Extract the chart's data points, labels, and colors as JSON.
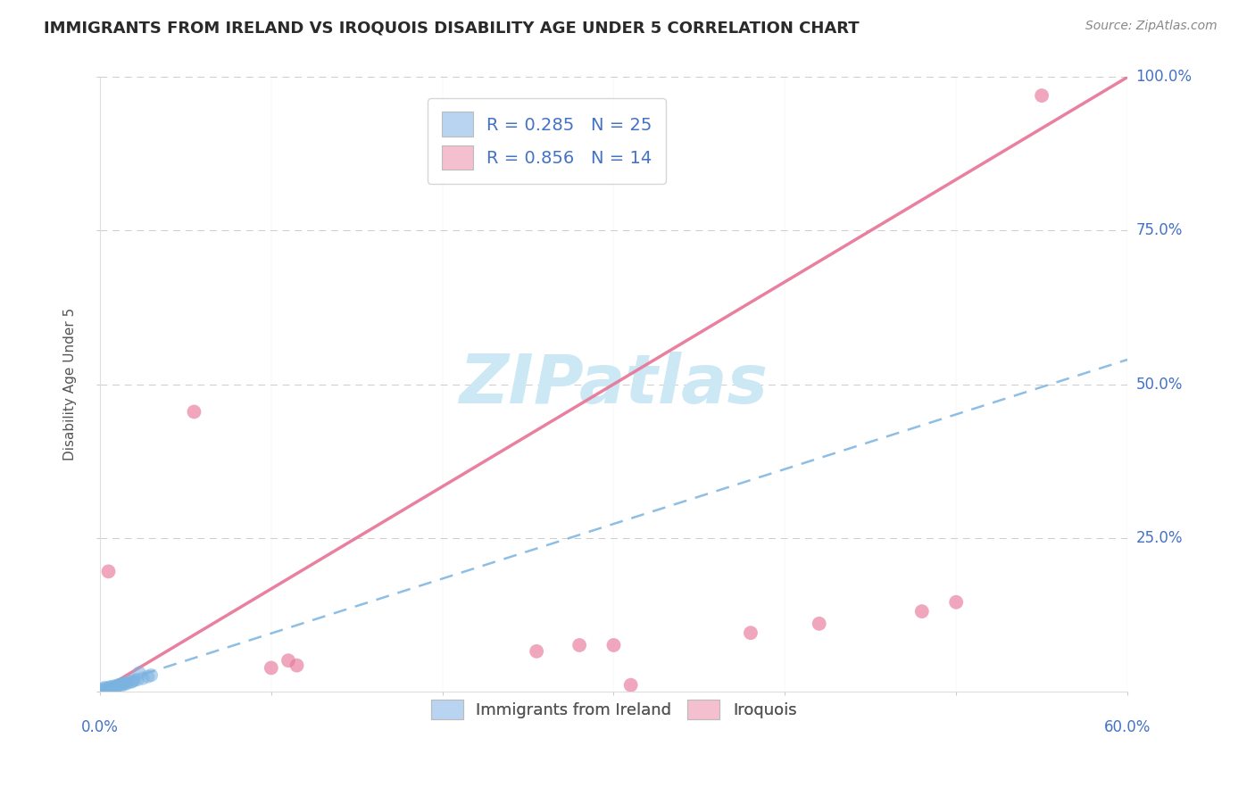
{
  "title": "IMMIGRANTS FROM IRELAND VS IROQUOIS DISABILITY AGE UNDER 5 CORRELATION CHART",
  "source": "Source: ZipAtlas.com",
  "ylabel": "Disability Age Under 5",
  "xlim": [
    0.0,
    0.6
  ],
  "ylim": [
    0.0,
    1.0
  ],
  "x_ticks": [
    0.0,
    0.1,
    0.2,
    0.3,
    0.4,
    0.5,
    0.6
  ],
  "y_ticks": [
    0.0,
    0.25,
    0.5,
    0.75,
    1.0
  ],
  "y_tick_labels": [
    "",
    "25.0%",
    "50.0%",
    "75.0%",
    "100.0%"
  ],
  "legend_entries": [
    {
      "label": "R = 0.285   N = 25",
      "color": "#b8d4f0"
    },
    {
      "label": "R = 0.856   N = 14",
      "color": "#f4c0d0"
    }
  ],
  "legend_labels": [
    "Immigrants from Ireland",
    "Iroquois"
  ],
  "legend_colors": [
    "#b8d4f0",
    "#f4c0d0"
  ],
  "watermark": "ZIPatlas",
  "blue_scatter": [
    [
      0.002,
      0.004
    ],
    [
      0.003,
      0.006
    ],
    [
      0.004,
      0.004
    ],
    [
      0.005,
      0.005
    ],
    [
      0.006,
      0.007
    ],
    [
      0.007,
      0.006
    ],
    [
      0.008,
      0.008
    ],
    [
      0.009,
      0.007
    ],
    [
      0.01,
      0.009
    ],
    [
      0.011,
      0.01
    ],
    [
      0.012,
      0.011
    ],
    [
      0.013,
      0.01
    ],
    [
      0.014,
      0.013
    ],
    [
      0.015,
      0.012
    ],
    [
      0.016,
      0.014
    ],
    [
      0.018,
      0.015
    ],
    [
      0.019,
      0.016
    ],
    [
      0.02,
      0.018
    ],
    [
      0.022,
      0.019
    ],
    [
      0.025,
      0.021
    ],
    [
      0.028,
      0.024
    ],
    [
      0.03,
      0.026
    ],
    [
      0.001,
      0.002
    ],
    [
      0.004,
      0.003
    ],
    [
      0.023,
      0.03
    ]
  ],
  "pink_scatter": [
    [
      0.005,
      0.195
    ],
    [
      0.055,
      0.455
    ],
    [
      0.1,
      0.038
    ],
    [
      0.11,
      0.05
    ],
    [
      0.115,
      0.042
    ],
    [
      0.28,
      0.075
    ],
    [
      0.3,
      0.075
    ],
    [
      0.31,
      0.01
    ],
    [
      0.38,
      0.095
    ],
    [
      0.42,
      0.11
    ],
    [
      0.48,
      0.13
    ],
    [
      0.55,
      0.97
    ],
    [
      0.255,
      0.065
    ],
    [
      0.5,
      0.145
    ]
  ],
  "blue_line_x": [
    0.0,
    0.6
  ],
  "blue_line_y": [
    0.005,
    0.54
  ],
  "pink_line_x": [
    0.0,
    0.6
  ],
  "pink_line_y": [
    0.0,
    1.0
  ],
  "blue_color": "#7ab3e0",
  "pink_color": "#e8799a",
  "title_color": "#2a2a2a",
  "tick_color": "#4472c4",
  "grid_color": "#cccccc",
  "watermark_color": "#cce8f4",
  "watermark_fontsize": 55,
  "dot_size_blue": 120,
  "dot_size_pink": 130
}
